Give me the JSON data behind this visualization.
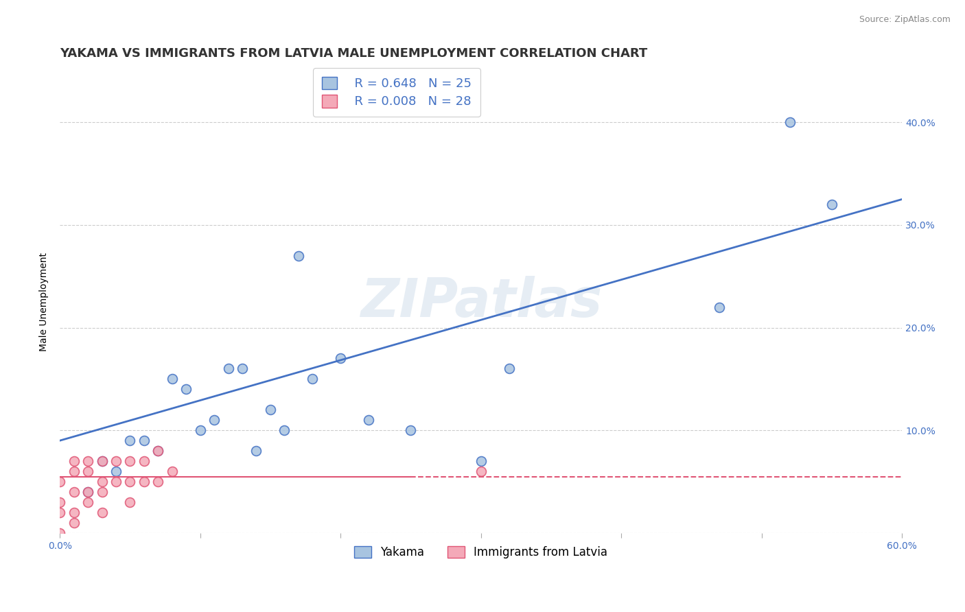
{
  "title": "YAKAMA VS IMMIGRANTS FROM LATVIA MALE UNEMPLOYMENT CORRELATION CHART",
  "source": "Source: ZipAtlas.com",
  "ylabel": "Male Unemployment",
  "xlim": [
    0.0,
    0.6
  ],
  "ylim": [
    0.0,
    0.45
  ],
  "grid_color": "#cccccc",
  "background_color": "#ffffff",
  "watermark": "ZIPatlas",
  "legend_R_yakama": "R = 0.648",
  "legend_N_yakama": "N = 25",
  "legend_R_latvia": "R = 0.008",
  "legend_N_latvia": "N = 28",
  "yakama_color": "#a8c4e0",
  "latvia_color": "#f4a9b8",
  "yakama_line_color": "#4472c4",
  "latvia_line_color": "#e05575",
  "yakama_scatter_x": [
    0.02,
    0.03,
    0.04,
    0.05,
    0.06,
    0.07,
    0.08,
    0.09,
    0.1,
    0.11,
    0.12,
    0.13,
    0.14,
    0.15,
    0.16,
    0.17,
    0.18,
    0.2,
    0.22,
    0.25,
    0.3,
    0.32,
    0.47,
    0.52,
    0.55
  ],
  "yakama_scatter_y": [
    0.04,
    0.07,
    0.06,
    0.09,
    0.09,
    0.08,
    0.15,
    0.14,
    0.1,
    0.11,
    0.16,
    0.16,
    0.08,
    0.12,
    0.1,
    0.27,
    0.15,
    0.17,
    0.11,
    0.1,
    0.07,
    0.16,
    0.22,
    0.4,
    0.32
  ],
  "latvia_scatter_x": [
    0.0,
    0.0,
    0.0,
    0.0,
    0.01,
    0.01,
    0.01,
    0.01,
    0.01,
    0.02,
    0.02,
    0.02,
    0.02,
    0.03,
    0.03,
    0.03,
    0.03,
    0.04,
    0.04,
    0.05,
    0.05,
    0.05,
    0.06,
    0.06,
    0.07,
    0.07,
    0.08,
    0.3
  ],
  "latvia_scatter_y": [
    0.0,
    0.02,
    0.03,
    0.05,
    0.01,
    0.02,
    0.04,
    0.06,
    0.07,
    0.03,
    0.04,
    0.06,
    0.07,
    0.02,
    0.04,
    0.05,
    0.07,
    0.05,
    0.07,
    0.03,
    0.05,
    0.07,
    0.05,
    0.07,
    0.05,
    0.08,
    0.06,
    0.06
  ],
  "trendline_yakama_x0": 0.0,
  "trendline_yakama_y0": 0.09,
  "trendline_yakama_x1": 0.6,
  "trendline_yakama_y1": 0.325,
  "trendline_latvia_x0": 0.0,
  "trendline_latvia_y0": 0.055,
  "trendline_latvia_x1": 0.6,
  "trendline_latvia_y1": 0.055,
  "title_fontsize": 13,
  "axis_label_fontsize": 10,
  "tick_fontsize": 10,
  "legend_fontsize": 13
}
